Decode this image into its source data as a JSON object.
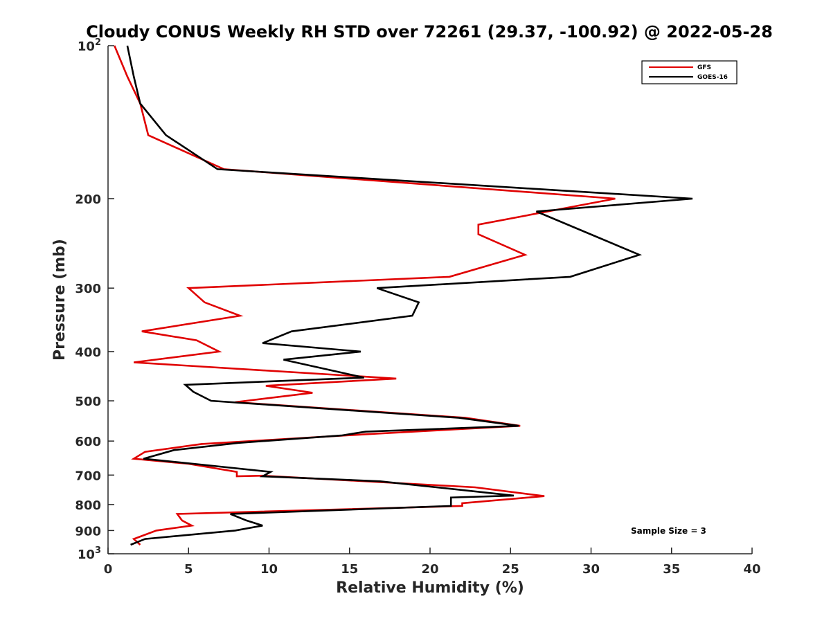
{
  "chart_data": {
    "type": "line",
    "title": "Cloudy CONUS Weekly RH STD over 72261 (29.37, -100.92) @ 2022-05-28",
    "xlabel": "Relative Humidity (%)",
    "ylabel": "Pressure (mb)",
    "xlim": [
      0,
      40
    ],
    "ylim": [
      100,
      1000
    ],
    "y_scale": "log",
    "y_reversed": true,
    "grid": false,
    "x_ticks": [
      0,
      5,
      10,
      15,
      20,
      25,
      30,
      35,
      40
    ],
    "x_tick_labels": [
      "0",
      "5",
      "10",
      "15",
      "20",
      "25",
      "30",
      "35",
      "40"
    ],
    "y_ticks": [
      100,
      200,
      300,
      400,
      500,
      600,
      700,
      800,
      900,
      1000
    ],
    "y_tick_labels": [
      {
        "base": "10",
        "exp": "2"
      },
      {
        "base": "200",
        "exp": ""
      },
      {
        "base": "300",
        "exp": ""
      },
      {
        "base": "400",
        "exp": ""
      },
      {
        "base": "500",
        "exp": ""
      },
      {
        "base": "600",
        "exp": ""
      },
      {
        "base": "700",
        "exp": ""
      },
      {
        "base": "800",
        "exp": ""
      },
      {
        "base": "900",
        "exp": ""
      },
      {
        "base": "10",
        "exp": "3"
      }
    ],
    "legend_position": "top-right",
    "annotation": "Sample Size = 3",
    "series": [
      {
        "name": "GFS",
        "color": "#e00000",
        "points": [
          [
            0.4,
            100
          ],
          [
            1.2,
            115
          ],
          [
            2.0,
            130
          ],
          [
            2.5,
            150
          ],
          [
            7.2,
            175
          ],
          [
            31.5,
            200
          ],
          [
            23.0,
            225
          ],
          [
            23.0,
            235
          ],
          [
            25.9,
            258
          ],
          [
            21.2,
            285
          ],
          [
            5.0,
            300
          ],
          [
            6.0,
            320
          ],
          [
            8.2,
            340
          ],
          [
            2.1,
            365
          ],
          [
            5.5,
            380
          ],
          [
            6.9,
            400
          ],
          [
            1.6,
            420
          ],
          [
            17.9,
            452
          ],
          [
            9.8,
            467
          ],
          [
            12.7,
            482
          ],
          [
            7.9,
            503
          ],
          [
            22.2,
            540
          ],
          [
            25.6,
            560
          ],
          [
            16.7,
            580
          ],
          [
            5.8,
            608
          ],
          [
            2.3,
            630
          ],
          [
            1.6,
            650
          ],
          [
            5.0,
            665
          ],
          [
            8.0,
            690
          ],
          [
            8.0,
            704
          ],
          [
            9.6,
            702
          ],
          [
            22.8,
            740
          ],
          [
            27.1,
            770
          ],
          [
            22.0,
            795
          ],
          [
            22.0,
            805
          ],
          [
            4.3,
            835
          ],
          [
            4.6,
            860
          ],
          [
            5.2,
            880
          ],
          [
            3.0,
            900
          ],
          [
            1.6,
            935
          ],
          [
            2.0,
            960
          ]
        ]
      },
      {
        "name": "GOES-16",
        "color": "#000000",
        "points": [
          [
            1.2,
            100
          ],
          [
            1.6,
            115
          ],
          [
            2.0,
            130
          ],
          [
            3.6,
            150
          ],
          [
            6.8,
            175
          ],
          [
            36.3,
            200
          ],
          [
            26.6,
            212
          ],
          [
            33.0,
            258
          ],
          [
            28.7,
            285
          ],
          [
            16.7,
            300
          ],
          [
            19.3,
            320
          ],
          [
            18.9,
            340
          ],
          [
            11.4,
            365
          ],
          [
            9.6,
            385
          ],
          [
            15.7,
            400
          ],
          [
            10.9,
            415
          ],
          [
            15.9,
            450
          ],
          [
            4.8,
            465
          ],
          [
            5.3,
            480
          ],
          [
            6.4,
            500
          ],
          [
            21.8,
            540
          ],
          [
            25.5,
            560
          ],
          [
            16.0,
            575
          ],
          [
            14.5,
            585
          ],
          [
            8.1,
            605
          ],
          [
            4.1,
            625
          ],
          [
            2.2,
            650
          ],
          [
            5.3,
            665
          ],
          [
            10.1,
            690
          ],
          [
            9.6,
            704
          ],
          [
            16.9,
            720
          ],
          [
            25.2,
            768
          ],
          [
            21.3,
            775
          ],
          [
            21.3,
            805
          ],
          [
            7.6,
            835
          ],
          [
            8.6,
            860
          ],
          [
            9.6,
            880
          ],
          [
            7.9,
            900
          ],
          [
            2.3,
            935
          ],
          [
            1.4,
            960
          ]
        ]
      }
    ]
  }
}
